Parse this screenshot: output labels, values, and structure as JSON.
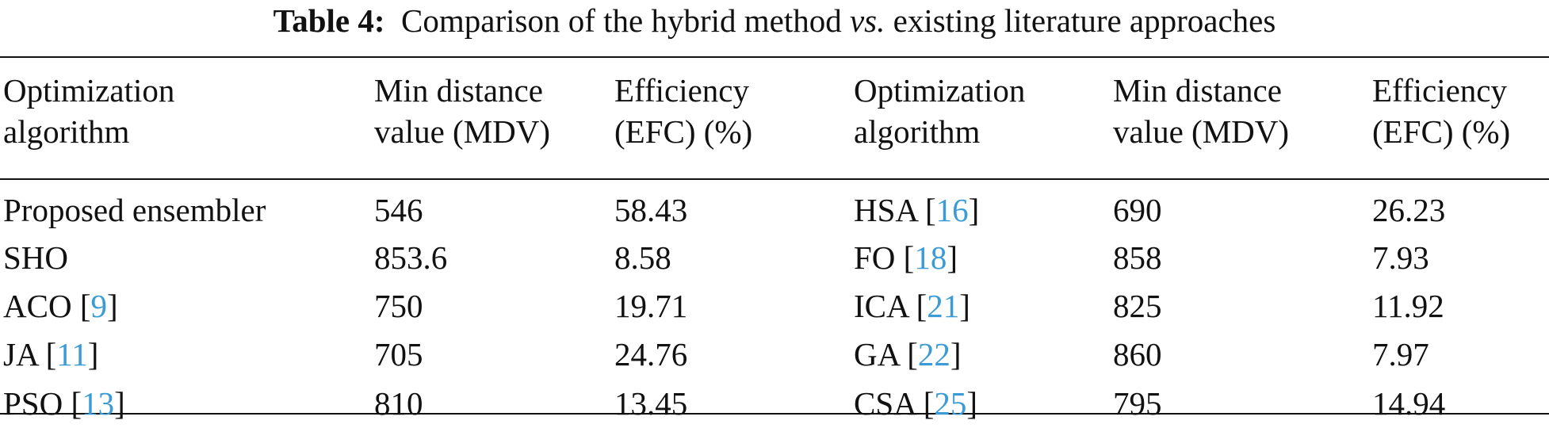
{
  "caption": {
    "label": "Table 4:",
    "text_before": "Comparison of the hybrid method",
    "text_italic": "vs.",
    "text_after": "existing literature approaches"
  },
  "columns": [
    {
      "line1": "Optimization",
      "line2": "algorithm"
    },
    {
      "line1": "Min distance",
      "line2": "value (MDV)"
    },
    {
      "line1": "Efficiency",
      "line2": "(EFC) (%)"
    },
    {
      "line1": "Optimization",
      "line2": "algorithm"
    },
    {
      "line1": "Min distance",
      "line2": "value (MDV)"
    },
    {
      "line1": "Efficiency",
      "line2": "(EFC) (%)"
    }
  ],
  "rows": [
    {
      "left": {
        "name": "Proposed ensembler",
        "ref": "",
        "mdv": "546",
        "efc": "58.43"
      },
      "right": {
        "name": "HSA",
        "ref": "16",
        "mdv": "690",
        "efc": "26.23"
      }
    },
    {
      "left": {
        "name": "SHO",
        "ref": "",
        "mdv": "853.6",
        "efc": "8.58"
      },
      "right": {
        "name": "FO",
        "ref": "18",
        "mdv": "858",
        "efc": "7.93"
      }
    },
    {
      "left": {
        "name": "ACO",
        "ref": "9",
        "mdv": "750",
        "efc": "19.71"
      },
      "right": {
        "name": "ICA",
        "ref": "21",
        "mdv": "825",
        "efc": "11.92"
      }
    },
    {
      "left": {
        "name": "JA",
        "ref": "11",
        "mdv": "705",
        "efc": "24.76"
      },
      "right": {
        "name": "GA",
        "ref": "22",
        "mdv": "860",
        "efc": "7.97"
      }
    },
    {
      "left": {
        "name": "PSO",
        "ref": "13",
        "mdv": "810",
        "efc": "13.45"
      },
      "right": {
        "name": "CSA",
        "ref": "25",
        "mdv": "795",
        "efc": "14.94"
      }
    }
  ],
  "colors": {
    "text": "#111111",
    "reference_link": "#3a9bd5",
    "background": "#ffffff"
  }
}
